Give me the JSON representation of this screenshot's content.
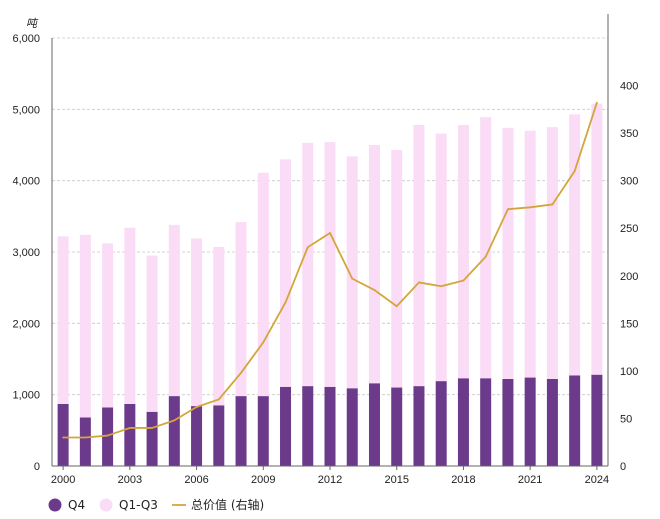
{
  "chart_data": {
    "type": "bar",
    "stacked": true,
    "left_unit": "吨",
    "x": [
      2000,
      2001,
      2002,
      2003,
      2004,
      2005,
      2006,
      2007,
      2008,
      2009,
      2010,
      2011,
      2012,
      2013,
      2014,
      2015,
      2016,
      2017,
      2018,
      2019,
      2020,
      2021,
      2022,
      2023,
      2024
    ],
    "x_tick_labels": [
      "2000",
      "2003",
      "2006",
      "2009",
      "2012",
      "2015",
      "2018",
      "2021",
      "2024"
    ],
    "x_tick_values": [
      2000,
      2003,
      2006,
      2009,
      2012,
      2015,
      2018,
      2021,
      2024
    ],
    "ylim_left": [
      0,
      6000
    ],
    "yticks_left": [
      "0",
      "1,000",
      "2,000",
      "3,000",
      "4,000",
      "5,000",
      "6,000"
    ],
    "yticks_left_values": [
      0,
      1000,
      2000,
      3000,
      4000,
      5000,
      6000
    ],
    "ylim_right": [
      0,
      450
    ],
    "yticks_right": [
      "0",
      "50",
      "100",
      "150",
      "200",
      "250",
      "300",
      "350",
      "400"
    ],
    "yticks_right_values": [
      0,
      50,
      100,
      150,
      200,
      250,
      300,
      350,
      400
    ],
    "series": [
      {
        "name": "Q4",
        "kind": "bar",
        "axis": "left",
        "color": "#6b3a8a",
        "values": [
          870,
          680,
          820,
          870,
          760,
          980,
          840,
          850,
          980,
          980,
          1110,
          1120,
          1110,
          1090,
          1160,
          1100,
          1120,
          1190,
          1230,
          1230,
          1220,
          1240,
          1220,
          1270,
          1280
        ]
      },
      {
        "name": "Q1-Q3",
        "kind": "bar",
        "axis": "left",
        "color": "#fadcf6",
        "values": [
          2350,
          2560,
          2300,
          2470,
          2190,
          2400,
          2350,
          2220,
          2440,
          3130,
          3190,
          3410,
          3430,
          3250,
          3340,
          3330,
          3660,
          3470,
          3550,
          3660,
          3520,
          3460,
          3530,
          3660,
          3800
        ]
      },
      {
        "name": "总价值 (右轴)",
        "kind": "line",
        "axis": "right",
        "color": "#d4a53a",
        "values": [
          30,
          30,
          32,
          40,
          40,
          48,
          62,
          70,
          98,
          130,
          172,
          230,
          245,
          197,
          185,
          168,
          193,
          189,
          195,
          220,
          270,
          272,
          275,
          310,
          382
        ]
      }
    ],
    "grid": "horizontal",
    "legend": "bottom-left"
  }
}
